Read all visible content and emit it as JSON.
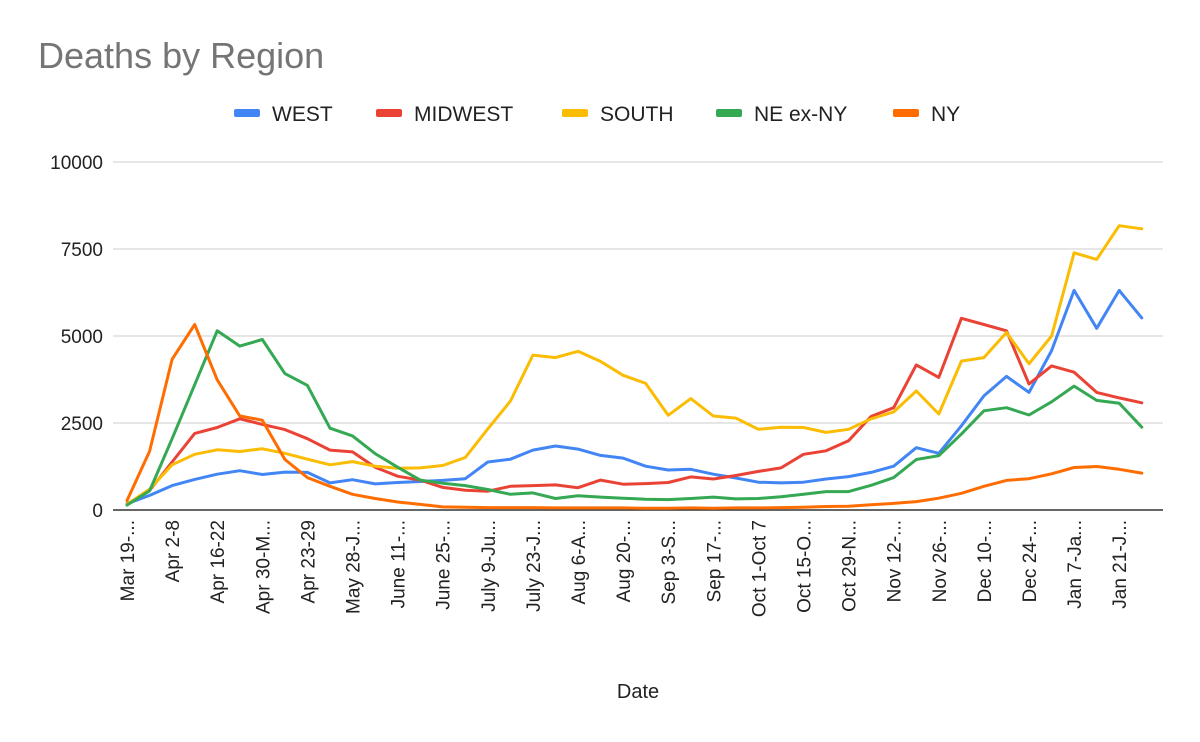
{
  "chart_data": {
    "type": "line",
    "title": "Deaths by Region",
    "xlabel": "Date",
    "ylabel": "",
    "ylim": [
      0,
      10000
    ],
    "yticks": [
      0,
      2500,
      5000,
      7500,
      10000
    ],
    "grid": true,
    "legend_position": "top",
    "categories": [
      "Mar 19-...",
      "",
      "Apr 2-8",
      "",
      "Apr 16-22",
      "",
      "Apr 30-M...",
      "",
      "Apr 23-29",
      "",
      "May 28-J...",
      "",
      "June 11-...",
      "",
      "June 25-...",
      "",
      "July 9-Ju...",
      "",
      "July 23-J...",
      "",
      "Aug 6-A...",
      "",
      "Aug 20-...",
      "",
      "Sep 3-S...",
      "",
      "Sep 17-...",
      "",
      "Oct 1-Oct 7",
      "",
      "Oct 15-O...",
      "",
      "Oct 29-N...",
      "",
      "Nov 12-...",
      "",
      "Nov 26-...",
      "",
      "Dec 10-...",
      "",
      "Dec 24-...",
      "",
      "Jan 7-Ja...",
      "",
      "Jan 21-J...",
      ""
    ],
    "series": [
      {
        "name": "WEST",
        "color": "#4285f4",
        "values": [
          180,
          420,
          700,
          880,
          1030,
          1130,
          1020,
          1090,
          1080,
          780,
          870,
          750,
          790,
          820,
          850,
          900,
          1380,
          1460,
          1720,
          1840,
          1750,
          1570,
          1490,
          1260,
          1150,
          1170,
          1030,
          920,
          800,
          780,
          800,
          890,
          960,
          1080,
          1260,
          1790,
          1630,
          2420,
          3280,
          3840,
          3380,
          4580,
          6310,
          5220,
          6310,
          5520
        ]
      },
      {
        "name": "MIDWEST",
        "color": "#ea4335",
        "values": [
          170,
          560,
          1380,
          2200,
          2370,
          2620,
          2460,
          2310,
          2050,
          1720,
          1670,
          1230,
          970,
          860,
          650,
          570,
          540,
          680,
          700,
          720,
          640,
          860,
          740,
          760,
          790,
          950,
          890,
          990,
          1110,
          1210,
          1600,
          1700,
          1990,
          2690,
          2940,
          4170,
          3810,
          5510,
          5330,
          5150,
          3620,
          4140,
          3960,
          3380,
          3220,
          3080
        ]
      },
      {
        "name": "SOUTH",
        "color": "#fbbc04",
        "values": [
          160,
          600,
          1300,
          1600,
          1730,
          1680,
          1760,
          1630,
          1460,
          1300,
          1390,
          1260,
          1200,
          1210,
          1280,
          1510,
          2330,
          3130,
          4450,
          4380,
          4560,
          4270,
          3870,
          3640,
          2720,
          3200,
          2700,
          2640,
          2320,
          2380,
          2370,
          2230,
          2320,
          2620,
          2820,
          3420,
          2760,
          4280,
          4380,
          5100,
          4200,
          5000,
          7390,
          7200,
          8170,
          8080
        ]
      },
      {
        "name": "NE ex-NY",
        "color": "#34a853",
        "values": [
          140,
          550,
          2050,
          3600,
          5150,
          4710,
          4900,
          3920,
          3580,
          2350,
          2130,
          1620,
          1230,
          860,
          770,
          700,
          590,
          450,
          490,
          330,
          410,
          370,
          340,
          310,
          300,
          330,
          370,
          320,
          330,
          380,
          450,
          530,
          530,
          710,
          930,
          1450,
          1560,
          2180,
          2850,
          2940,
          2730,
          3110,
          3560,
          3150,
          3070,
          2380
        ]
      },
      {
        "name": "NY",
        "color": "#ff6d01",
        "values": [
          270,
          1690,
          4330,
          5330,
          3740,
          2700,
          2580,
          1450,
          930,
          680,
          450,
          330,
          230,
          160,
          90,
          80,
          70,
          70,
          70,
          60,
          60,
          60,
          60,
          50,
          50,
          60,
          50,
          60,
          60,
          70,
          80,
          100,
          110,
          150,
          190,
          240,
          340,
          480,
          680,
          850,
          900,
          1040,
          1220,
          1250,
          1170,
          1060
        ]
      }
    ]
  }
}
